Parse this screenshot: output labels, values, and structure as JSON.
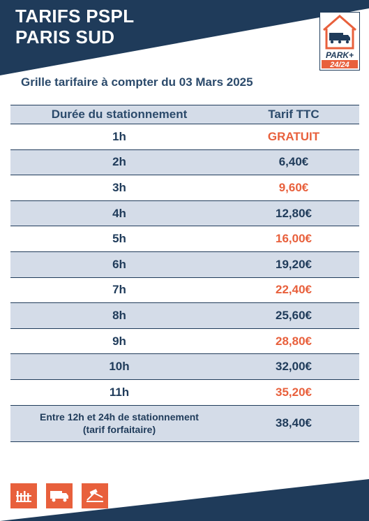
{
  "header": {
    "title_line1": "TARIFS PSPL",
    "title_line2": "PARIS SUD"
  },
  "logo": {
    "name": "PARK+",
    "hours": "24/24"
  },
  "subtitle": "Grille tarifaire à compter du 03 Mars 2025",
  "table": {
    "columns": [
      "Durée du stationnement",
      "Tarif TTC"
    ],
    "rows": [
      {
        "duration": "1h",
        "price": "GRATUIT"
      },
      {
        "duration": "2h",
        "price": "6,40€"
      },
      {
        "duration": "3h",
        "price": "9,60€"
      },
      {
        "duration": "4h",
        "price": "12,80€"
      },
      {
        "duration": "5h",
        "price": "16,00€"
      },
      {
        "duration": "6h",
        "price": "19,20€"
      },
      {
        "duration": "7h",
        "price": "22,40€"
      },
      {
        "duration": "8h",
        "price": "25,60€"
      },
      {
        "duration": "9h",
        "price": "28,80€"
      },
      {
        "duration": "10h",
        "price": "32,00€"
      },
      {
        "duration": "11h",
        "price": "35,20€"
      }
    ],
    "last_row": {
      "duration_line1": "Entre 12h et 24h de stationnement",
      "duration_line2": "(tarif forfaitaire)",
      "price": "38,40€"
    }
  },
  "footer_icons": [
    "barrier-icon",
    "truck-icon",
    "ramp-icon"
  ],
  "colors": {
    "navy": "#1f3b5a",
    "orange": "#e8603c",
    "row_alt": "#d4dce8"
  }
}
